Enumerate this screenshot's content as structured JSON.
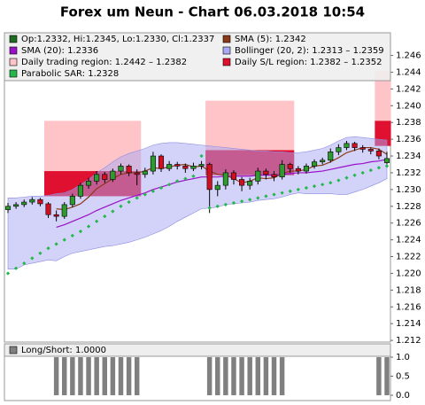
{
  "chart_data": {
    "type": "candlestick",
    "title": "Forex um Neun - Chart 06.03.2018 10:54",
    "ylim": [
      1.2118,
      1.2487
    ],
    "yticks": [
      1.212,
      1.214,
      1.216,
      1.218,
      {
        "value": 1.22,
        "label": "1.220"
      },
      1.222,
      1.224,
      1.226,
      1.228,
      {
        "value": 1.23,
        "label": "1.230"
      },
      1.232,
      1.234,
      1.236,
      1.238,
      {
        "value": 1.24,
        "label": "1.240"
      },
      1.242,
      1.244,
      1.246
    ],
    "ohlc": {
      "name": "Op:1.2332, Hi:1.2345, Lo:1.2330, Cl:1.2337",
      "color": "#1f6b1f",
      "up_color": "#2e9b2e",
      "down_color": "#d01020",
      "open": [
        1.2276,
        1.228,
        1.2282,
        1.2285,
        1.2288,
        1.2283,
        1.227,
        1.2268,
        1.2282,
        1.2292,
        1.2305,
        1.231,
        1.2318,
        1.2312,
        1.2322,
        1.2328,
        1.232,
        1.2318,
        1.2322,
        1.234,
        1.2325,
        1.233,
        1.2328,
        1.2325,
        1.2328,
        1.233,
        1.23,
        1.2305,
        1.232,
        1.2312,
        1.2305,
        1.231,
        1.2322,
        1.2318,
        1.2315,
        1.233,
        1.2325,
        1.2322,
        1.2328,
        1.2333,
        1.2335,
        1.2345,
        1.235,
        1.2355,
        1.235,
        1.2348,
        1.2346,
        1.2332
      ],
      "high": [
        1.2284,
        1.2285,
        1.2288,
        1.2291,
        1.229,
        1.2285,
        1.2275,
        1.2285,
        1.2295,
        1.2308,
        1.2314,
        1.2322,
        1.2321,
        1.2325,
        1.2331,
        1.233,
        1.2324,
        1.2326,
        1.2345,
        1.2342,
        1.2334,
        1.2333,
        1.2331,
        1.2332,
        1.2334,
        1.2332,
        1.231,
        1.2324,
        1.2323,
        1.2315,
        1.2314,
        1.2326,
        1.2325,
        1.2322,
        1.2335,
        1.2332,
        1.2328,
        1.2331,
        1.2336,
        1.2338,
        1.2349,
        1.2354,
        1.2358,
        1.2357,
        1.2353,
        1.235,
        1.2349,
        1.2345
      ],
      "low": [
        1.2272,
        1.2277,
        1.2279,
        1.2282,
        1.228,
        1.2266,
        1.2262,
        1.2265,
        1.2279,
        1.2289,
        1.2301,
        1.2306,
        1.2308,
        1.2309,
        1.2318,
        1.2316,
        1.2305,
        1.2314,
        1.2318,
        1.2321,
        1.2322,
        1.2324,
        1.232,
        1.2322,
        1.2324,
        1.2272,
        1.2292,
        1.23,
        1.2306,
        1.2298,
        1.23,
        1.2306,
        1.2312,
        1.231,
        1.2312,
        1.232,
        1.2318,
        1.2319,
        1.2325,
        1.233,
        1.2332,
        1.2341,
        1.2347,
        1.2346,
        1.2344,
        1.2342,
        1.2336,
        1.233
      ],
      "close": [
        1.228,
        1.2282,
        1.2285,
        1.2288,
        1.2283,
        1.227,
        1.2268,
        1.2282,
        1.2292,
        1.2305,
        1.231,
        1.2318,
        1.2312,
        1.2322,
        1.2328,
        1.232,
        1.2318,
        1.2322,
        1.234,
        1.2325,
        1.233,
        1.2328,
        1.2325,
        1.2328,
        1.233,
        1.23,
        1.2305,
        1.232,
        1.2312,
        1.2305,
        1.231,
        1.2322,
        1.2318,
        1.2315,
        1.233,
        1.2325,
        1.2322,
        1.2328,
        1.2333,
        1.2335,
        1.2345,
        1.235,
        1.2355,
        1.235,
        1.2348,
        1.2346,
        1.234,
        1.2337
      ]
    },
    "sma5": {
      "name": "SMA (5): 1.2342",
      "color": "#8b3a1a",
      "values": [
        null,
        null,
        null,
        null,
        null,
        null,
        1.2277,
        1.2276,
        1.2279,
        1.2283,
        1.2291,
        1.2301,
        1.2307,
        1.2313,
        1.2318,
        1.232,
        1.232,
        1.2322,
        1.2326,
        1.2325,
        1.2327,
        1.2329,
        1.233,
        1.2327,
        1.2328,
        1.2322,
        1.2318,
        1.2317,
        1.2313,
        1.2308,
        1.231,
        1.2314,
        1.2313,
        1.2314,
        1.2319,
        1.2322,
        1.2322,
        1.2324,
        1.2328,
        1.2329,
        1.2333,
        1.2338,
        1.2344,
        1.2347,
        1.235,
        1.235,
        1.2348,
        1.2342
      ]
    },
    "sma20": {
      "name": "SMA (20): 1.2336",
      "color": "#9a10c8",
      "values": [
        null,
        null,
        null,
        null,
        null,
        null,
        1.2255,
        1.2258,
        1.2262,
        1.2266,
        1.227,
        1.2275,
        1.2279,
        1.2283,
        1.2287,
        1.229,
        1.2293,
        1.2296,
        1.23,
        1.2303,
        1.2306,
        1.2309,
        1.2311,
        1.2313,
        1.2315,
        1.2315,
        1.2315,
        1.2316,
        1.2316,
        1.2316,
        1.2316,
        1.2317,
        1.2317,
        1.2317,
        1.2318,
        1.2319,
        1.232,
        1.232,
        1.2321,
        1.2322,
        1.2324,
        1.2326,
        1.2328,
        1.233,
        1.2331,
        1.2333,
        1.2334,
        1.2336
      ]
    },
    "bollinger": {
      "name": "Bollinger (20, 2): 1.2313 – 1.2359",
      "color": "#a8a8f4",
      "upper": [
        1.229,
        1.229,
        1.2291,
        1.2292,
        1.2292,
        1.2293,
        1.2295,
        1.2296,
        1.23,
        1.2306,
        1.2312,
        1.232,
        1.2326,
        1.2333,
        1.2339,
        1.2343,
        1.2346,
        1.2349,
        1.2353,
        1.2355,
        1.2356,
        1.2356,
        1.2355,
        1.2354,
        1.2353,
        1.2352,
        1.2351,
        1.235,
        1.2349,
        1.2348,
        1.2347,
        1.2346,
        1.2346,
        1.2345,
        1.2345,
        1.2344,
        1.2344,
        1.2345,
        1.2347,
        1.2349,
        1.2353,
        1.2358,
        1.2362,
        1.2363,
        1.2362,
        1.2361,
        1.236,
        1.2359
      ],
      "lower": [
        1.2205,
        1.2205,
        1.221,
        1.2212,
        1.2214,
        1.2216,
        1.2215,
        1.222,
        1.2224,
        1.2226,
        1.2228,
        1.223,
        1.2232,
        1.2233,
        1.2235,
        1.2237,
        1.224,
        1.2243,
        1.2247,
        1.2251,
        1.2256,
        1.2262,
        1.2267,
        1.2272,
        1.2277,
        1.2278,
        1.2279,
        1.2282,
        1.2283,
        1.2284,
        1.2285,
        1.2287,
        1.2288,
        1.2289,
        1.2291,
        1.2294,
        1.2296,
        1.2295,
        1.2295,
        1.2295,
        1.2295,
        1.2294,
        1.2294,
        1.2297,
        1.23,
        1.2304,
        1.2308,
        1.2313
      ]
    },
    "trading_region": {
      "name": "Daily trading region: 1.2442 – 1.2382",
      "color": "#ffc4c8"
    },
    "sl_region": {
      "name": "Daily S/L region: 1.2382 – 1.2352",
      "color": "#e01030"
    },
    "regions": [
      {
        "x": [
          5,
          16
        ],
        "trading": [
          1.2382,
          1.2322
        ],
        "sl": [
          1.2322,
          1.2292
        ]
      },
      {
        "x": [
          25,
          35
        ],
        "trading": [
          1.2406,
          1.2347
        ],
        "sl": [
          1.2347,
          1.2317
        ]
      },
      {
        "x": [
          46,
          47
        ],
        "trading": [
          1.2442,
          1.2382
        ],
        "sl": [
          1.2382,
          1.2352
        ]
      }
    ],
    "sar": {
      "name": "Parabolic SAR: 1.2328",
      "color": "#22b84a",
      "values": [
        1.22,
        1.2206,
        1.2212,
        1.2218,
        1.2224,
        1.223,
        1.2235,
        1.224,
        1.2245,
        1.225,
        1.2256,
        1.2262,
        1.2268,
        1.2274,
        1.228,
        1.2285,
        1.229,
        1.2294,
        1.2298,
        1.2302,
        1.2306,
        1.231,
        1.2313,
        1.2316,
        1.234,
        1.2278,
        1.228,
        1.2282,
        1.2284,
        1.2286,
        1.2288,
        1.229,
        1.2292,
        1.2294,
        1.2296,
        1.2298,
        1.23,
        1.2302,
        1.2304,
        1.2306,
        1.2308,
        1.2311,
        1.2314,
        1.2317,
        1.232,
        1.2323,
        1.2326,
        1.2328
      ]
    },
    "long_short": {
      "name": "Long/Short: 1.0000",
      "color": "#808080",
      "ylim": [
        -0.14,
        1.35
      ],
      "yticks": [
        {
          "value": 0,
          "label": "0.0"
        },
        {
          "value": 0.5,
          "label": "0.5"
        },
        {
          "value": 1,
          "label": "1.0"
        }
      ],
      "values": [
        0,
        0,
        0,
        0,
        0,
        0,
        1,
        1,
        1,
        1,
        1,
        1,
        1,
        1,
        1,
        1,
        1,
        0,
        0,
        0,
        0,
        0,
        0,
        0,
        0,
        1,
        1,
        1,
        1,
        1,
        1,
        1,
        1,
        1,
        1,
        0,
        0,
        0,
        0,
        0,
        0,
        0,
        0,
        0,
        0,
        0,
        1,
        1
      ]
    }
  }
}
